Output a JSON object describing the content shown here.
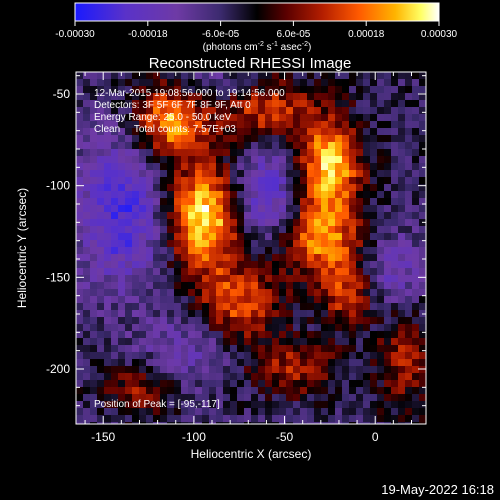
{
  "chart_data": {
    "type": "heatmap",
    "title": "Reconstructed RHESSI Image",
    "xlabel": "Heliocentric X (arcsec)",
    "ylabel": "Heliocentric Y (arcsec)",
    "xlim": [
      -165,
      28
    ],
    "ylim": [
      -230,
      -38
    ],
    "xticks": [
      -150,
      -100,
      -50,
      0
    ],
    "yticks": [
      -50,
      -100,
      -150,
      -200
    ],
    "colorbar": {
      "range": [
        -0.0003,
        0.0003
      ],
      "tick_labels": [
        "-0.00030",
        "-0.00018",
        "-6.0e-05",
        "6.0e-05",
        "0.00018",
        "0.00030"
      ],
      "tick_values": [
        -0.0003,
        -0.00018,
        -6e-05,
        6e-05,
        0.00018,
        0.0003
      ],
      "units_prefix": "(photons cm",
      "units_exp1": "-2",
      "units_mid": " s",
      "units_exp2": "-1",
      "units_mid2": " asec",
      "units_exp3": "-2",
      "units_suffix": ")"
    },
    "colormap": [
      "#1a1aff",
      "#5a32c8",
      "#6e3aa5",
      "#3b2a6e",
      "#000000",
      "#5a0000",
      "#b41e00",
      "#ff5a00",
      "#ffb400",
      "#ffff64",
      "#ffffff"
    ],
    "annotations": [
      "12-Mar-2015 19:08:56.000 to 19:14:56.000",
      "Detectors: 3F 5F 6F 7F 8F 9F, Att 0",
      "Energy Range: 25.0 - 50.0 keV",
      "Clean     Total counts: 7.57E+03"
    ],
    "peak_label": "Position of Peak = [-95,-117]",
    "peak": {
      "x": -95,
      "y": -117
    }
  },
  "footer": {
    "date": "19-May-2022 16:18"
  }
}
